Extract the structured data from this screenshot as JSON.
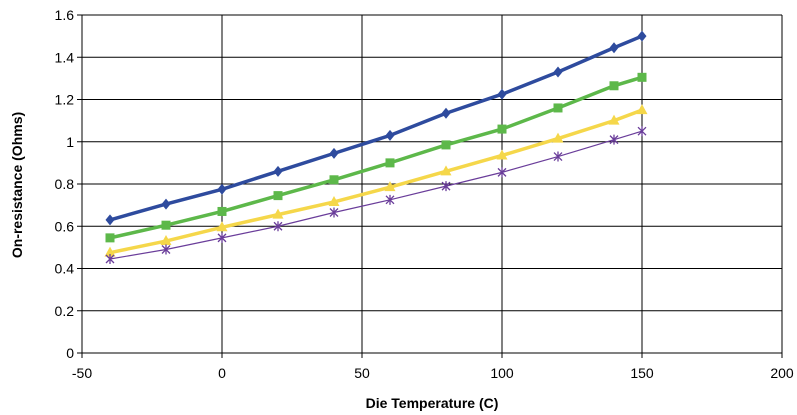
{
  "chart_data": {
    "type": "line",
    "title": "",
    "xlabel": "Die Temperature (C)",
    "ylabel": "On-resistance (Ohms)",
    "xlim": [
      -50,
      200
    ],
    "ylim": [
      0,
      1.6
    ],
    "xticks": [
      -50,
      0,
      50,
      100,
      150,
      200
    ],
    "yticks": [
      0,
      0.2,
      0.4,
      0.6,
      0.8,
      1,
      1.2,
      1.4,
      1.6
    ],
    "grid": true,
    "x": [
      -40,
      -20,
      0,
      20,
      40,
      60,
      80,
      100,
      120,
      140,
      150
    ],
    "series": [
      {
        "color": "#2E4B9E",
        "marker": "diamond",
        "line_width": "thick",
        "values": [
          0.63,
          0.705,
          0.775,
          0.86,
          0.945,
          1.03,
          1.135,
          1.225,
          1.33,
          1.445,
          1.5
        ]
      },
      {
        "color": "#5DB84A",
        "marker": "square",
        "line_width": "thick",
        "values": [
          0.545,
          0.605,
          0.67,
          0.745,
          0.82,
          0.9,
          0.985,
          1.06,
          1.16,
          1.265,
          1.305
        ]
      },
      {
        "color": "#F5D74A",
        "marker": "triangle",
        "line_width": "thick",
        "values": [
          0.475,
          0.53,
          0.595,
          0.655,
          0.715,
          0.785,
          0.86,
          0.935,
          1.015,
          1.1,
          1.15
        ]
      },
      {
        "color": "#6A3D9A",
        "marker": "asterisk",
        "line_width": "thin",
        "values": [
          0.445,
          0.49,
          0.545,
          0.6,
          0.665,
          0.725,
          0.79,
          0.855,
          0.93,
          1.01,
          1.05
        ]
      }
    ]
  }
}
